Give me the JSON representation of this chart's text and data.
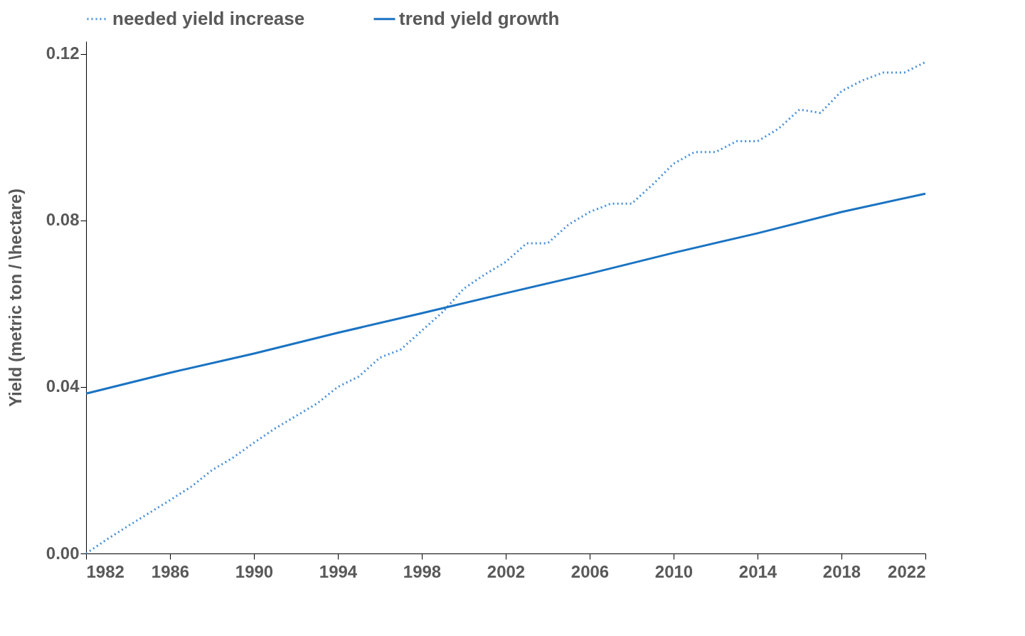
{
  "chart_data": {
    "type": "line",
    "ylabel": "Yield (metric ton / \\hectare)",
    "xlim": [
      1982,
      2022
    ],
    "xticks": [
      1982,
      1986,
      1990,
      1994,
      1998,
      2002,
      2006,
      2010,
      2014,
      2018,
      2022
    ],
    "ylim": [
      0,
      0.123
    ],
    "yticks": [
      {
        "value": 0,
        "label": "0.00"
      },
      {
        "value": 0.04,
        "label": "0.04"
      },
      {
        "value": 0.08,
        "label": "0.08"
      },
      {
        "value": 0.12,
        "label": "0.12"
      }
    ],
    "grid": false,
    "legend": "top",
    "marker": "none",
    "series": [
      {
        "name": "needed yield increase",
        "color": "#4a90d9",
        "line_style": "dotted",
        "x": [
          1982,
          1983,
          1984,
          1985,
          1986,
          1987,
          1988,
          1989,
          1990,
          1991,
          1992,
          1993,
          1994,
          1995,
          1996,
          1997,
          1998,
          1999,
          2000,
          2001,
          2002,
          2003,
          2004,
          2005,
          2006,
          2007,
          2008,
          2009,
          2010,
          2011,
          2012,
          2013,
          2014,
          2015,
          2016,
          2017,
          2018,
          2019,
          2020,
          2021,
          2022
        ],
        "values": [
          0.0,
          0.0034,
          0.0066,
          0.0097,
          0.0128,
          0.016,
          0.02,
          0.023,
          0.0266,
          0.03,
          0.033,
          0.036,
          0.04,
          0.0425,
          0.047,
          0.049,
          0.0535,
          0.058,
          0.0636,
          0.067,
          0.07,
          0.0745,
          0.0745,
          0.079,
          0.082,
          0.084,
          0.084,
          0.0886,
          0.0936,
          0.0964,
          0.0964,
          0.099,
          0.099,
          0.102,
          0.1066,
          0.1058,
          0.111,
          0.1136,
          0.1155,
          0.1155,
          0.118
        ]
      },
      {
        "name": "trend yield growth",
        "color": "#1a73c2",
        "line_style": "solid",
        "x": [
          1982,
          1986,
          1990,
          1994,
          1998,
          2002,
          2006,
          2010,
          2014,
          2018,
          2022
        ],
        "values": [
          0.0384,
          0.0434,
          0.048,
          0.053,
          0.0577,
          0.0625,
          0.0672,
          0.0722,
          0.0769,
          0.082,
          0.0864
        ]
      }
    ]
  }
}
